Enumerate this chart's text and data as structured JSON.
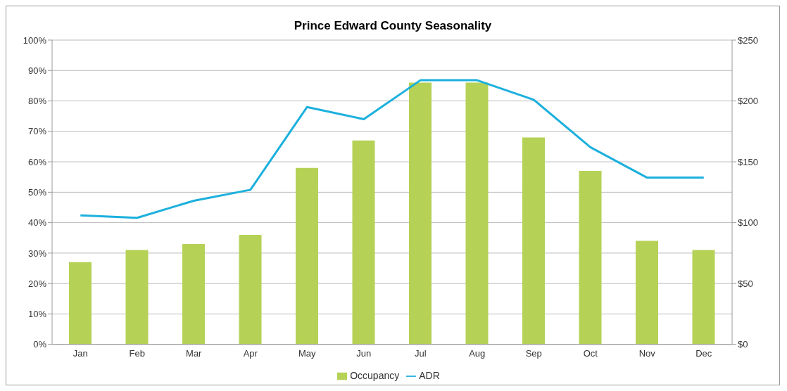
{
  "chart_data": {
    "type": "bar",
    "title": "Prince Edward County Seasonality",
    "categories": [
      "Jan",
      "Feb",
      "Mar",
      "Apr",
      "May",
      "Jun",
      "Jul",
      "Aug",
      "Sep",
      "Oct",
      "Nov",
      "Dec"
    ],
    "series": [
      {
        "name": "Occupancy",
        "color": "#b5d156",
        "values": [
          27,
          31,
          33,
          36,
          58,
          67,
          86,
          86,
          68,
          57,
          34,
          31
        ]
      },
      {
        "name": "ADR",
        "type": "line",
        "axis": "y2",
        "color": "#1cb0dd",
        "values": [
          106,
          104,
          118,
          127,
          195,
          185,
          217,
          217,
          201,
          162,
          137,
          137
        ]
      }
    ],
    "ylim": [
      0,
      100
    ],
    "yticks": [
      {
        "value": 0,
        "label": "0%"
      },
      {
        "value": 10,
        "label": "10%"
      },
      {
        "value": 20,
        "label": "20%"
      },
      {
        "value": 30,
        "label": "30%"
      },
      {
        "value": 40,
        "label": "40%"
      },
      {
        "value": 50,
        "label": "50%"
      },
      {
        "value": 60,
        "label": "60%"
      },
      {
        "value": 70,
        "label": "70%"
      },
      {
        "value": 80,
        "label": "80%"
      },
      {
        "value": 90,
        "label": "90%"
      },
      {
        "value": 100,
        "label": "100%"
      }
    ],
    "y2lim": [
      0,
      250
    ],
    "y2ticks": [
      {
        "value": 0,
        "label": "$0"
      },
      {
        "value": 50,
        "label": "$50"
      },
      {
        "value": 100,
        "label": "$100"
      },
      {
        "value": 150,
        "label": "$150"
      },
      {
        "value": 200,
        "label": "$200"
      },
      {
        "value": 250,
        "label": "$250"
      }
    ],
    "grid": "y",
    "legend": "bottom",
    "marker": "none",
    "line_style": "solid"
  }
}
